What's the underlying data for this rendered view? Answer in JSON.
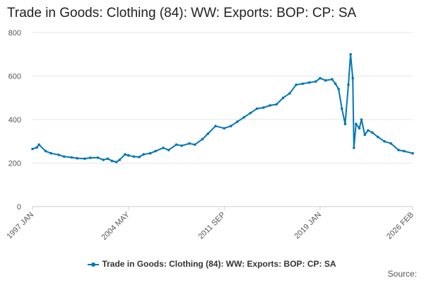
{
  "title": "Trade in Goods: Clothing (84): WW: Exports: BOP: CP: SA",
  "source_label": "Source:",
  "colors": {
    "series": "#0077b6",
    "grid": "#e6e6e6",
    "axis": "#cccccc"
  },
  "legend": {
    "label": "Trade in Goods: Clothing (84): WW: Exports: BOP: CP: SA",
    "position": "bottom-center"
  },
  "chart_data": {
    "type": "line",
    "title": "Trade in Goods: Clothing (84): WW: Exports: BOP: CP: SA",
    "xlabel": "",
    "ylabel": "",
    "x_range": [
      "1997 JAN",
      "2026 FEB"
    ],
    "ylim": [
      0,
      800
    ],
    "y_ticks": [
      0,
      200,
      400,
      600,
      800
    ],
    "x_ticks": [
      "1997 JAN",
      "2004 MAY",
      "2011 SEP",
      "2019 JAN",
      "2026 FEB"
    ],
    "grid": true,
    "series": [
      {
        "name": "Trade in Goods: Clothing (84): WW: Exports: BOP: CP: SA",
        "x": [
          "1997-01",
          "1997-05",
          "1997-07",
          "1998-01",
          "1998-06",
          "1999-01",
          "1999-06",
          "2000-01",
          "2000-06",
          "2001-01",
          "2001-06",
          "2002-01",
          "2002-06",
          "2002-10",
          "2003-02",
          "2003-06",
          "2003-09",
          "2004-02",
          "2004-05",
          "2004-10",
          "2005-03",
          "2005-07",
          "2006-01",
          "2006-06",
          "2007-01",
          "2007-06",
          "2008-01",
          "2008-06",
          "2009-01",
          "2009-06",
          "2010-01",
          "2010-06",
          "2011-01",
          "2011-09",
          "2012-03",
          "2012-09",
          "2013-03",
          "2013-09",
          "2014-03",
          "2014-09",
          "2015-03",
          "2015-09",
          "2016-03",
          "2016-09",
          "2017-03",
          "2017-09",
          "2018-03",
          "2018-09",
          "2019-01",
          "2019-06",
          "2019-12",
          "2020-03",
          "2020-06",
          "2020-09",
          "2020-12",
          "2021-03",
          "2021-05",
          "2021-07",
          "2021-08",
          "2021-10",
          "2022-01",
          "2022-03",
          "2022-06",
          "2022-09",
          "2023-01",
          "2023-06",
          "2023-12",
          "2024-06",
          "2025-01",
          "2025-06",
          "2026-02"
        ],
        "values": [
          265,
          272,
          285,
          255,
          245,
          238,
          230,
          226,
          222,
          220,
          224,
          225,
          215,
          220,
          210,
          205,
          215,
          240,
          235,
          230,
          228,
          240,
          245,
          255,
          270,
          260,
          285,
          280,
          290,
          285,
          310,
          335,
          370,
          360,
          370,
          390,
          410,
          430,
          450,
          455,
          465,
          470,
          500,
          520,
          560,
          565,
          570,
          575,
          590,
          580,
          585,
          565,
          540,
          450,
          380,
          560,
          700,
          590,
          270,
          380,
          360,
          400,
          330,
          350,
          340,
          320,
          300,
          290,
          260,
          255,
          245
        ]
      }
    ]
  }
}
